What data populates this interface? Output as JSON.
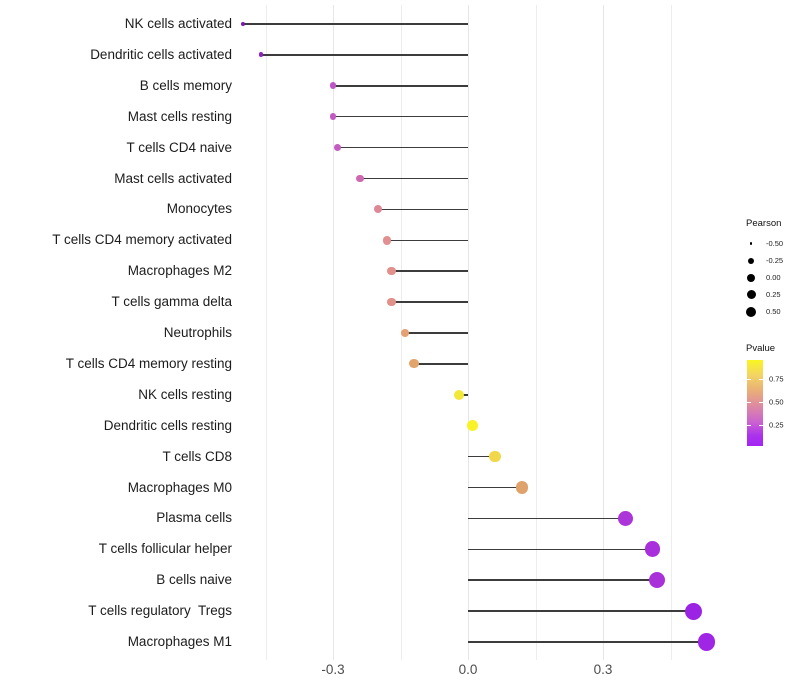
{
  "chart_data": {
    "type": "scatter",
    "variant": "lollipop",
    "orientation": "horizontal",
    "title": "",
    "xlabel": "",
    "ylabel": "",
    "xlim": [
      -0.55,
      0.58
    ],
    "grid": {
      "on": true,
      "major": [
        -0.3,
        0.0,
        0.3
      ],
      "minor": [
        -0.45,
        -0.15,
        0.15,
        0.45
      ]
    },
    "x_ticks": [
      {
        "value": -0.3,
        "label": "-0.3"
      },
      {
        "value": 0.0,
        "label": "0.0"
      },
      {
        "value": 0.3,
        "label": "0.3"
      }
    ],
    "rows": [
      {
        "label": "NK cells activated",
        "pearson": -0.5,
        "pvalue_est": 0.05,
        "color": "#7d17b2"
      },
      {
        "label": "Dendritic cells activated",
        "pearson": -0.46,
        "pvalue_est": 0.08,
        "color": "#8d23c0"
      },
      {
        "label": "B cells memory",
        "pearson": -0.3,
        "pvalue_est": 0.28,
        "color": "#c055c8"
      },
      {
        "label": "Mast cells resting",
        "pearson": -0.3,
        "pvalue_est": 0.28,
        "color": "#c259c5"
      },
      {
        "label": "T cells CD4 naive",
        "pearson": -0.29,
        "pvalue_est": 0.3,
        "color": "#c45dc0"
      },
      {
        "label": "Mast cells activated",
        "pearson": -0.24,
        "pvalue_est": 0.35,
        "color": "#ce68b0"
      },
      {
        "label": "Monocytes",
        "pearson": -0.2,
        "pvalue_est": 0.48,
        "color": "#de8897"
      },
      {
        "label": "T cells CD4 memory activated",
        "pearson": -0.18,
        "pvalue_est": 0.52,
        "color": "#e18f90"
      },
      {
        "label": "Macrophages M2",
        "pearson": -0.17,
        "pvalue_est": 0.52,
        "color": "#e1908c"
      },
      {
        "label": "T cells gamma delta",
        "pearson": -0.17,
        "pvalue_est": 0.53,
        "color": "#e2918a"
      },
      {
        "label": "Neutrophils",
        "pearson": -0.14,
        "pvalue_est": 0.62,
        "color": "#e5a173"
      },
      {
        "label": "T cells CD4 memory resting",
        "pearson": -0.12,
        "pvalue_est": 0.64,
        "color": "#e3a56b"
      },
      {
        "label": "NK cells resting",
        "pearson": -0.02,
        "pvalue_est": 0.86,
        "color": "#f2e838"
      },
      {
        "label": "Dendritic cells resting",
        "pearson": 0.01,
        "pvalue_est": 0.95,
        "color": "#f8f227"
      },
      {
        "label": "T cells CD8",
        "pearson": 0.06,
        "pvalue_est": 0.8,
        "color": "#f2d74a"
      },
      {
        "label": "Macrophages M0",
        "pearson": 0.12,
        "pvalue_est": 0.64,
        "color": "#e0a26b"
      },
      {
        "label": "Plasma cells",
        "pearson": 0.35,
        "pvalue_est": 0.18,
        "color": "#ab35d9"
      },
      {
        "label": "T cells follicular helper",
        "pearson": 0.41,
        "pvalue_est": 0.16,
        "color": "#a82fdb"
      },
      {
        "label": "B cells naive",
        "pearson": 0.42,
        "pvalue_est": 0.16,
        "color": "#a831da"
      },
      {
        "label": "T cells regulatory  Tregs",
        "pearson": 0.5,
        "pvalue_est": 0.08,
        "color": "#9b23e3"
      },
      {
        "label": "Macrophages M1",
        "pearson": 0.53,
        "pvalue_est": 0.07,
        "color": "#a026e6"
      }
    ],
    "legends": {
      "size": {
        "title": "Pearson",
        "entries": [
          {
            "label": "-0.50",
            "value": -0.5
          },
          {
            "label": "-0.25",
            "value": -0.25
          },
          {
            "label": "0.00",
            "value": 0.0
          },
          {
            "label": "0.25",
            "value": 0.25
          },
          {
            "label": "0.50",
            "value": 0.5
          }
        ]
      },
      "color": {
        "title": "Pvalue",
        "ticks": [
          {
            "label": "0.75",
            "value": 0.75
          },
          {
            "label": "0.50",
            "value": 0.5
          },
          {
            "label": "0.25",
            "value": 0.25
          }
        ],
        "gradient_top_to_bottom": [
          "#f9f521",
          "#eab077",
          "#de8d9e",
          "#cb63cf",
          "#a324f4"
        ],
        "scale_top_value": 0.95,
        "scale_bottom_value": 0.03
      }
    }
  }
}
